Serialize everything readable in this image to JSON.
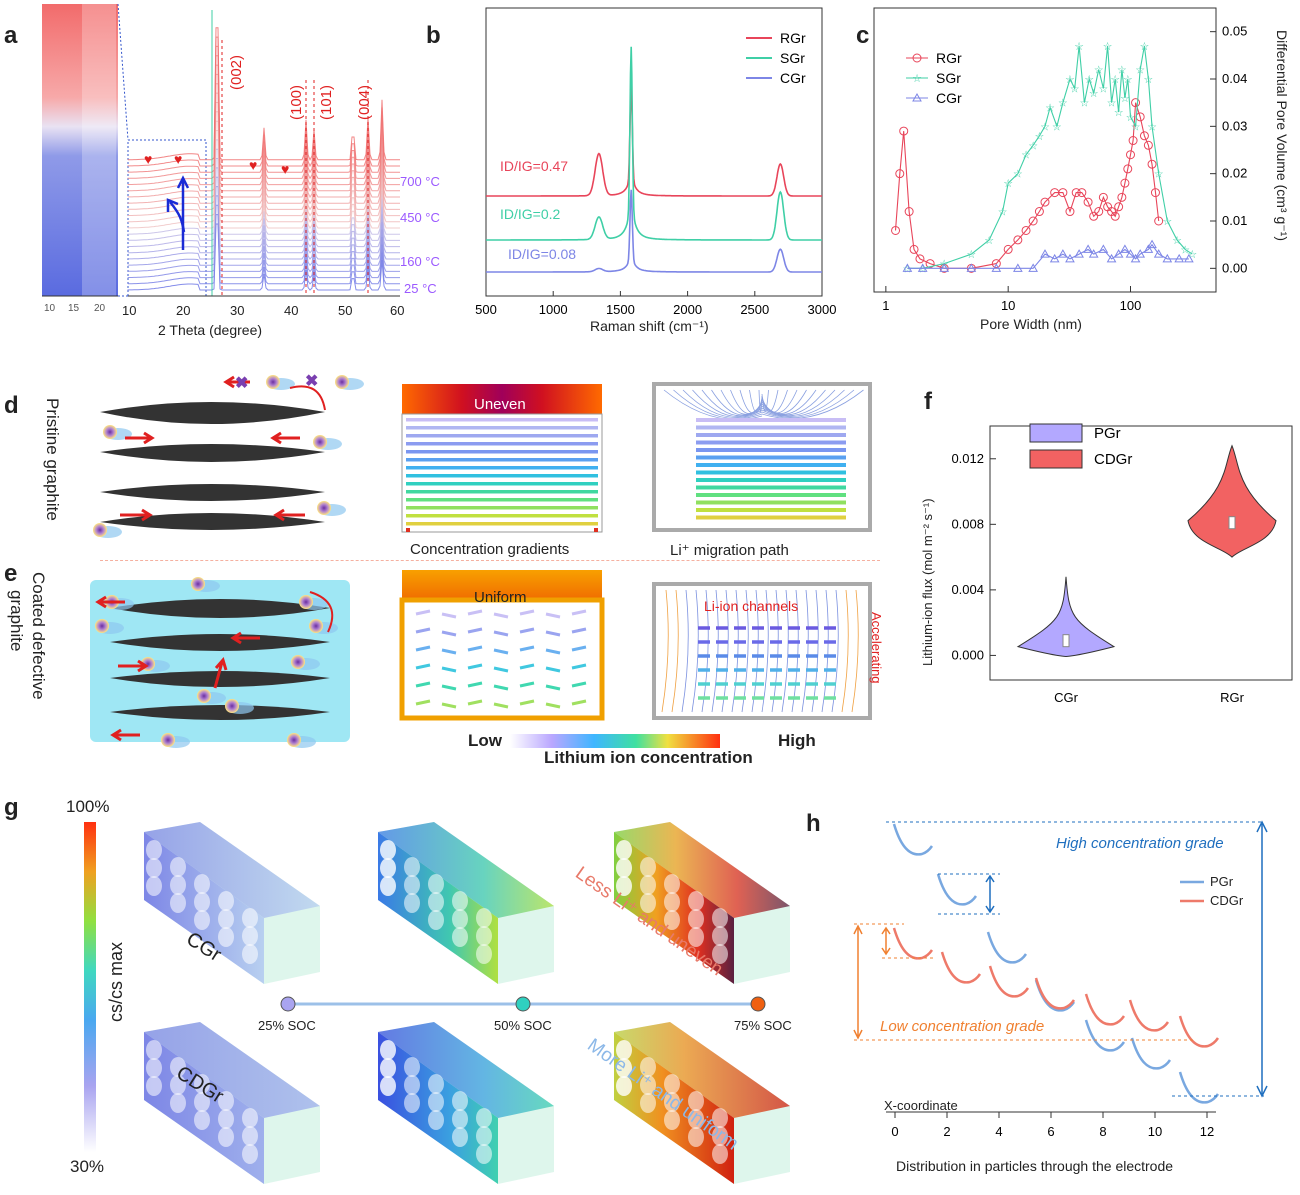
{
  "panels": {
    "a": "a",
    "b": "b",
    "c": "c",
    "d": "d",
    "e": "e",
    "f": "f",
    "g": "g",
    "h": "h"
  },
  "colors": {
    "red": "#e8455a",
    "green": "#3fcfa6",
    "blue": "#7d86e6",
    "violet": "#9b59ff",
    "navy": "#1f6fbf",
    "orange": "#f08030"
  },
  "panel_a": {
    "xlabel": "2 Theta  (degree)",
    "left_ticks": [
      "10",
      "15",
      "20"
    ],
    "main_ticks": [
      "10",
      "20",
      "30",
      "40",
      "50",
      "60"
    ],
    "peaks": [
      "(002)",
      "(100)",
      "(101)",
      "(004)"
    ],
    "temps": [
      "700 °C",
      "450 °C",
      "160 °C",
      "25 °C"
    ]
  },
  "chart_data": [
    {
      "type": "line",
      "panel": "b",
      "xlabel": "Raman shift (cm⁻¹)",
      "ylabel": "",
      "xlim": [
        500,
        3000
      ],
      "x_ticks": [
        "500",
        "1000",
        "1500",
        "2000",
        "2500",
        "3000"
      ],
      "series": [
        {
          "name": "RGr",
          "annotation": "ID/IG=0.47",
          "peaks": [
            {
              "x": 1340,
              "h": 0.42
            },
            {
              "x": 1580,
              "h": 0.95
            },
            {
              "x": 2690,
              "h": 0.32
            }
          ]
        },
        {
          "name": "SGr",
          "annotation": "ID/IG=0.2",
          "peaks": [
            {
              "x": 1340,
              "h": 0.28
            },
            {
              "x": 1580,
              "h": 2.1
            },
            {
              "x": 2690,
              "h": 0.6
            }
          ]
        },
        {
          "name": "CGr",
          "annotation": "ID/IG=0.08",
          "peaks": [
            {
              "x": 1340,
              "h": 0.05
            },
            {
              "x": 1580,
              "h": 1.1
            },
            {
              "x": 2690,
              "h": 0.35
            }
          ]
        }
      ]
    },
    {
      "type": "line",
      "panel": "c",
      "xlabel": "Pore Width (nm)",
      "ylabel": "Differential Pore Volume (cm³ g⁻¹)",
      "xscale": "log",
      "xlim": [
        0.8,
        500
      ],
      "ylim": [
        -0.005,
        0.055
      ],
      "x_ticks": [
        "1",
        "10",
        "100"
      ],
      "y_ticks": [
        "0.00",
        "0.01",
        "0.02",
        "0.03",
        "0.04",
        "0.05"
      ],
      "series": [
        {
          "name": "RGr",
          "marker": "circle",
          "points": [
            [
              1.2,
              0.008
            ],
            [
              1.3,
              0.02
            ],
            [
              1.4,
              0.029
            ],
            [
              1.55,
              0.012
            ],
            [
              1.7,
              0.004
            ],
            [
              1.9,
              0.002
            ],
            [
              2.3,
              0.001
            ],
            [
              3,
              0.0
            ],
            [
              5,
              0.0
            ],
            [
              8,
              0.001
            ],
            [
              10,
              0.004
            ],
            [
              12,
              0.006
            ],
            [
              14,
              0.008
            ],
            [
              16,
              0.01
            ],
            [
              18,
              0.012
            ],
            [
              20,
              0.014
            ],
            [
              24,
              0.016
            ],
            [
              28,
              0.016
            ],
            [
              32,
              0.012
            ],
            [
              36,
              0.016
            ],
            [
              40,
              0.016
            ],
            [
              45,
              0.014
            ],
            [
              50,
              0.011
            ],
            [
              55,
              0.012
            ],
            [
              60,
              0.015
            ],
            [
              65,
              0.013
            ],
            [
              70,
              0.012
            ],
            [
              75,
              0.011
            ],
            [
              80,
              0.013
            ],
            [
              85,
              0.015
            ],
            [
              90,
              0.018
            ],
            [
              95,
              0.021
            ],
            [
              100,
              0.024
            ],
            [
              105,
              0.027
            ],
            [
              110,
              0.035
            ],
            [
              120,
              0.032
            ],
            [
              130,
              0.028
            ],
            [
              140,
              0.026
            ],
            [
              150,
              0.022
            ],
            [
              160,
              0.016
            ],
            [
              170,
              0.01
            ]
          ]
        },
        {
          "name": "SGr",
          "marker": "star",
          "points": [
            [
              1.5,
              0.0
            ],
            [
              2,
              0.0
            ],
            [
              3,
              0.001
            ],
            [
              5,
              0.003
            ],
            [
              7,
              0.006
            ],
            [
              9,
              0.012
            ],
            [
              10,
              0.018
            ],
            [
              12,
              0.02
            ],
            [
              14,
              0.024
            ],
            [
              16,
              0.026
            ],
            [
              18,
              0.028
            ],
            [
              20,
              0.03
            ],
            [
              22,
              0.034
            ],
            [
              25,
              0.03
            ],
            [
              28,
              0.035
            ],
            [
              32,
              0.04
            ],
            [
              35,
              0.038
            ],
            [
              38,
              0.047
            ],
            [
              42,
              0.035
            ],
            [
              46,
              0.04
            ],
            [
              50,
              0.037
            ],
            [
              55,
              0.042
            ],
            [
              60,
              0.038
            ],
            [
              65,
              0.047
            ],
            [
              70,
              0.035
            ],
            [
              75,
              0.04
            ],
            [
              80,
              0.033
            ],
            [
              85,
              0.042
            ],
            [
              90,
              0.036
            ],
            [
              95,
              0.04
            ],
            [
              100,
              0.032
            ],
            [
              110,
              0.03
            ],
            [
              120,
              0.042
            ],
            [
              130,
              0.047
            ],
            [
              140,
              0.04
            ],
            [
              150,
              0.03
            ],
            [
              170,
              0.02
            ],
            [
              200,
              0.01
            ],
            [
              240,
              0.006
            ],
            [
              280,
              0.004
            ],
            [
              320,
              0.003
            ]
          ]
        },
        {
          "name": "CGr",
          "marker": "triangle",
          "points": [
            [
              1.5,
              0.0
            ],
            [
              2,
              0.0
            ],
            [
              3,
              0.0
            ],
            [
              5,
              0.0
            ],
            [
              8,
              0.0
            ],
            [
              12,
              0.0
            ],
            [
              16,
              0.0
            ],
            [
              20,
              0.003
            ],
            [
              24,
              0.002
            ],
            [
              28,
              0.003
            ],
            [
              32,
              0.002
            ],
            [
              38,
              0.003
            ],
            [
              45,
              0.004
            ],
            [
              50,
              0.003
            ],
            [
              60,
              0.004
            ],
            [
              70,
              0.002
            ],
            [
              80,
              0.003
            ],
            [
              90,
              0.004
            ],
            [
              100,
              0.003
            ],
            [
              110,
              0.002
            ],
            [
              120,
              0.003
            ],
            [
              140,
              0.004
            ],
            [
              150,
              0.005
            ],
            [
              170,
              0.003
            ],
            [
              200,
              0.002
            ],
            [
              250,
              0.002
            ],
            [
              300,
              0.002
            ]
          ]
        }
      ]
    },
    {
      "type": "violin",
      "panel": "f",
      "ylabel": "Lithium-ion flux (mol m⁻² s⁻¹)",
      "ylim": [
        -0.0015,
        0.014
      ],
      "y_ticks": [
        "0.000",
        "0.004",
        "0.008",
        "0.012"
      ],
      "categories": [
        "CGr",
        "RGr"
      ],
      "series": [
        {
          "name": "PGr",
          "category": "CGr",
          "median": 0.0009,
          "min": 0.0003,
          "max": 0.0048
        },
        {
          "name": "CDGr",
          "category": "RGr",
          "median": 0.0081,
          "min": 0.006,
          "max": 0.0128
        }
      ]
    }
  ],
  "panel_d": {
    "side_label": "Pristine graphite",
    "sim1_title": "Uneven",
    "sim1_caption": "Concentration gradients",
    "sim2_caption": "Li⁺ migration path"
  },
  "panel_e": {
    "side_label_1": "Coated defective",
    "side_label_2": "graphite",
    "sim1_title": "Uniform",
    "channels_label": "Li-ion channels",
    "accel_label": "Accelerating",
    "cbar_low": "Low",
    "cbar_high": "High",
    "cbar_title": "Lithium ion concentration"
  },
  "panel_g": {
    "cbar_top": "100%",
    "cbar_bottom": "30%",
    "cbar_title": "cs/cs max",
    "row1_label": "CGr",
    "row2_label": "CDGr",
    "soc": [
      "25% SOC",
      "50% SOC",
      "75% SOC"
    ],
    "note_top": "Less Li⁺ and uneven",
    "note_bottom": "More Li⁺ and uniform"
  },
  "panel_h": {
    "high_label": "High concentration grade",
    "low_label": "Low concentration grade",
    "legend": [
      "PGr",
      "CDGr"
    ],
    "coord_label": "X-coordinate",
    "x_ticks": [
      "0",
      "2",
      "4",
      "6",
      "8",
      "10",
      "12"
    ],
    "xlabel": "Distribution in particles through the electrode"
  }
}
